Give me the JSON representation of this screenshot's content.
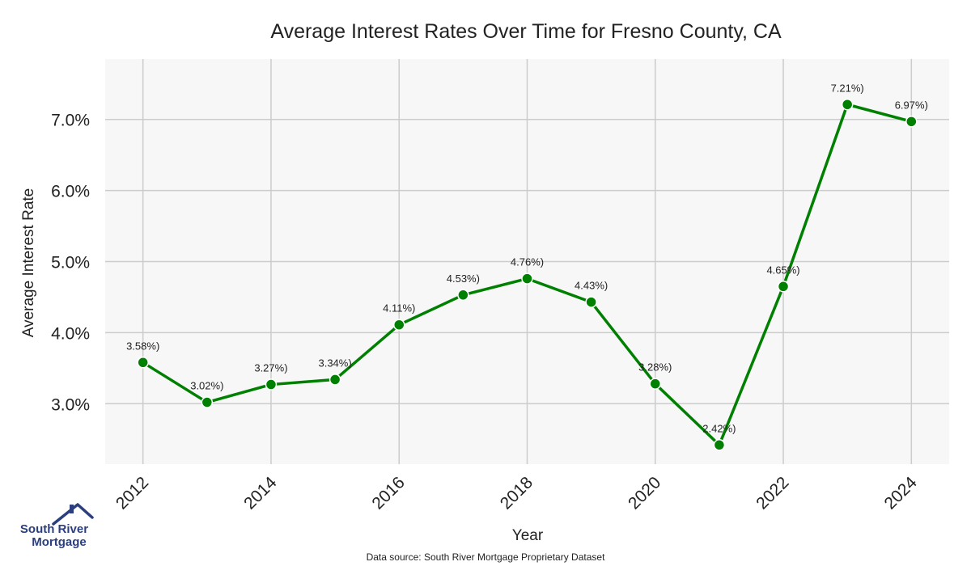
{
  "brand": {
    "line1": "South River",
    "line2": "Mortgage",
    "color": "#2b3f7e",
    "logo_icon": "house-roof-icon"
  },
  "source_note": "Data source: South River Mortgage Proprietary Dataset",
  "chart_data": {
    "type": "line",
    "title": "Average Interest Rates Over Time for Fresno County, CA",
    "xlabel": "Year",
    "ylabel": "Average Interest Rate",
    "x": [
      2012,
      2013,
      2014,
      2015,
      2016,
      2017,
      2018,
      2019,
      2020,
      2021,
      2022,
      2023,
      2024
    ],
    "series": [
      {
        "values": [
          3.58,
          3.02,
          3.27,
          3.34,
          4.11,
          4.53,
          4.76,
          4.43,
          3.28,
          2.42,
          4.65,
          7.21,
          6.97
        ],
        "labels": [
          "3.58%)",
          "3.02%)",
          "3.27%)",
          "3.34%)",
          "4.11%)",
          "4.53%)",
          "4.76%)",
          "4.43%)",
          "3.28%)",
          "2.42%)",
          "4.65%)",
          "7.21%)",
          "6.97%)"
        ],
        "color": "#008000"
      }
    ],
    "x_ticks": [
      "2012",
      "2014",
      "2016",
      "2018",
      "2020",
      "2022",
      "2024"
    ],
    "y_ticks": [
      "3.0%",
      "4.0%",
      "5.0%",
      "6.0%",
      "7.0%"
    ],
    "y_tick_values": [
      3.0,
      4.0,
      5.0,
      6.0,
      7.0
    ],
    "x_tick_values": [
      2012,
      2014,
      2016,
      2018,
      2020,
      2022,
      2024
    ],
    "xlim": [
      2011.41,
      2024.59
    ],
    "ylim": [
      2.15,
      7.85
    ],
    "grid": true,
    "background": "#f7f7f7",
    "grid_color": "#cccccc"
  }
}
